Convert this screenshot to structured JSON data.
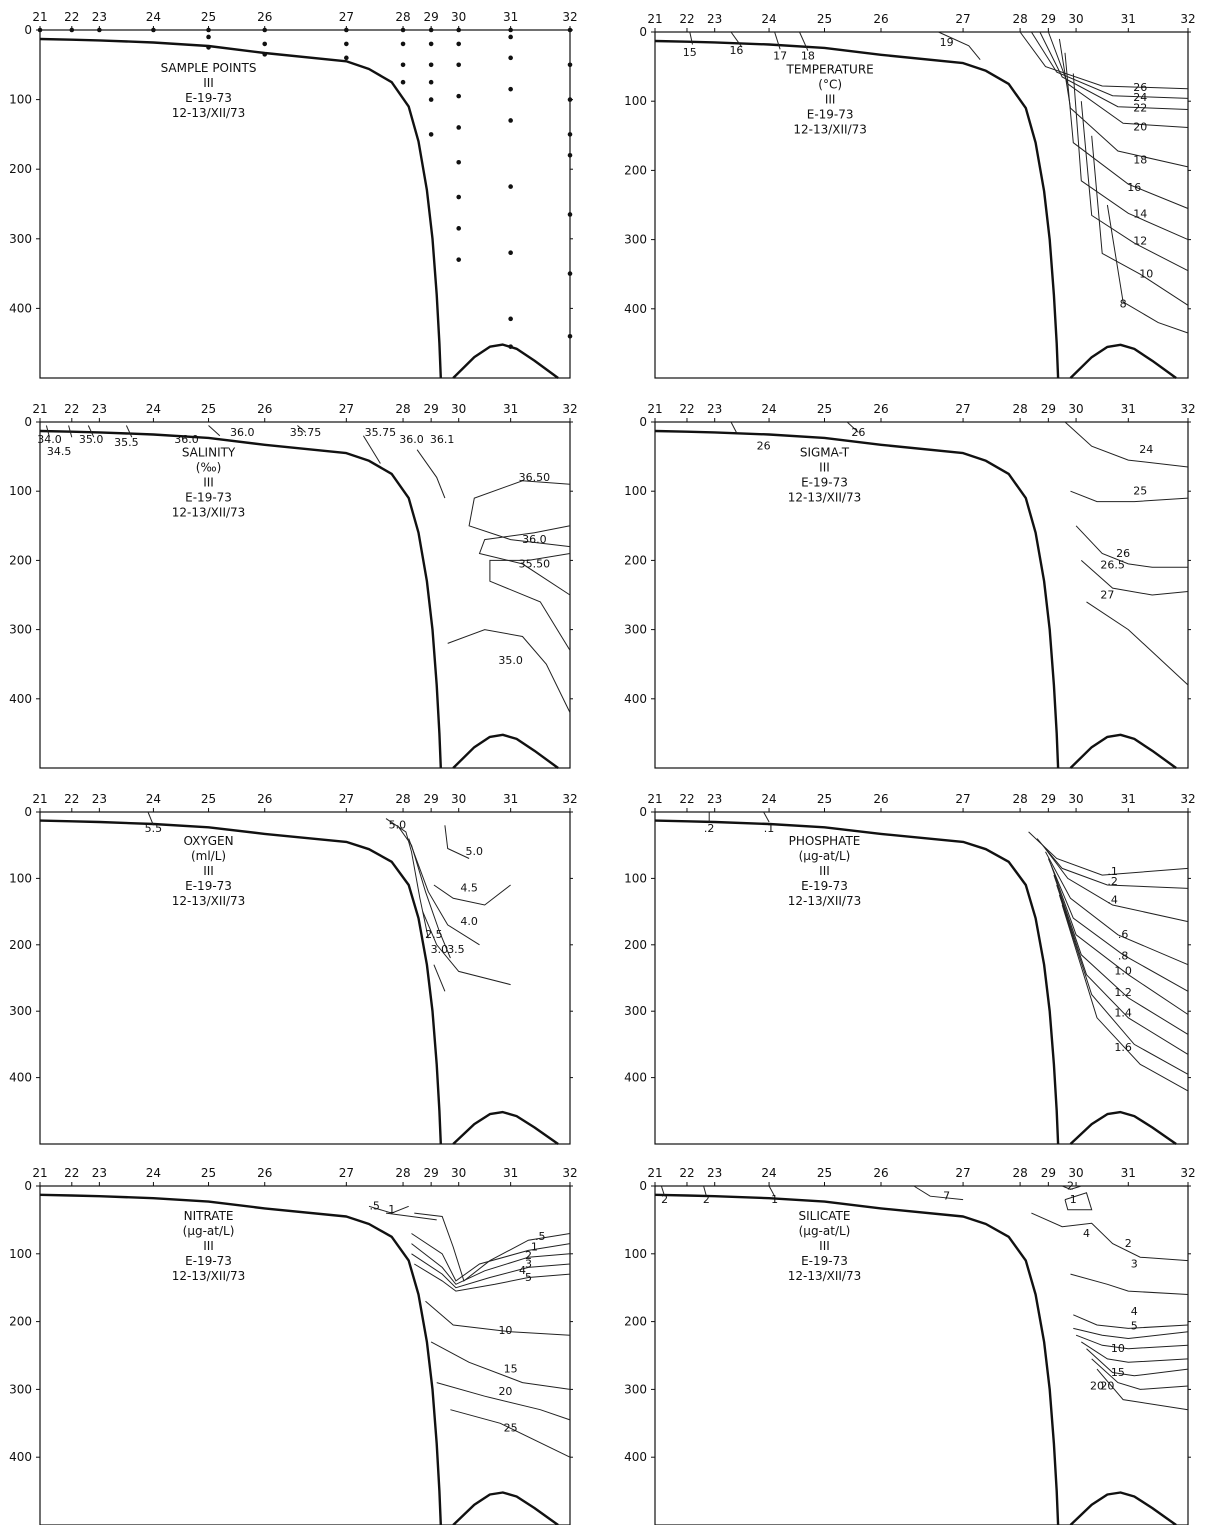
{
  "chart_data": [
    {
      "id": "sample_points",
      "type": "scatter",
      "title_lines": [
        "SAMPLE POINTS",
        "III",
        "E-19-73",
        "12-13/XII/73"
      ],
      "stations": [
        "21",
        "22",
        "23",
        "24",
        "25",
        "26",
        "27",
        "28",
        "29",
        "30",
        "31",
        "32"
      ],
      "y_ticks": [
        "0",
        "100",
        "200",
        "300",
        "400"
      ],
      "ylim": [
        0,
        500
      ],
      "points": [
        {
          "station": 21,
          "depth": 0
        },
        {
          "station": 22,
          "depth": 0
        },
        {
          "station": 23,
          "depth": 0
        },
        {
          "station": 24,
          "depth": 0
        },
        {
          "station": 25,
          "depth": 0
        },
        {
          "station": 25,
          "depth": 10
        },
        {
          "station": 25,
          "depth": 25
        },
        {
          "station": 26,
          "depth": 0
        },
        {
          "station": 26,
          "depth": 20
        },
        {
          "station": 26,
          "depth": 35
        },
        {
          "station": 27,
          "depth": 0
        },
        {
          "station": 27,
          "depth": 20
        },
        {
          "station": 27,
          "depth": 40
        },
        {
          "station": 28,
          "depth": 0
        },
        {
          "station": 28,
          "depth": 20
        },
        {
          "station": 28,
          "depth": 50
        },
        {
          "station": 28,
          "depth": 75
        },
        {
          "station": 29,
          "depth": 0
        },
        {
          "station": 29,
          "depth": 20
        },
        {
          "station": 29,
          "depth": 50
        },
        {
          "station": 29,
          "depth": 75
        },
        {
          "station": 29,
          "depth": 100
        },
        {
          "station": 29,
          "depth": 150
        },
        {
          "station": 30,
          "depth": 0
        },
        {
          "station": 30,
          "depth": 20
        },
        {
          "station": 30,
          "depth": 50
        },
        {
          "station": 30,
          "depth": 95
        },
        {
          "station": 30,
          "depth": 140
        },
        {
          "station": 30,
          "depth": 190
        },
        {
          "station": 30,
          "depth": 240
        },
        {
          "station": 30,
          "depth": 285
        },
        {
          "station": 30,
          "depth": 330
        },
        {
          "station": 31,
          "depth": 0
        },
        {
          "station": 31,
          "depth": 10
        },
        {
          "station": 31,
          "depth": 40
        },
        {
          "station": 31,
          "depth": 85
        },
        {
          "station": 31,
          "depth": 130
        },
        {
          "station": 31,
          "depth": 225
        },
        {
          "station": 31,
          "depth": 320
        },
        {
          "station": 31,
          "depth": 415
        },
        {
          "station": 31,
          "depth": 455
        },
        {
          "station": 32,
          "depth": 0
        },
        {
          "station": 32,
          "depth": 50
        },
        {
          "station": 32,
          "depth": 100
        },
        {
          "station": 32,
          "depth": 150
        },
        {
          "station": 32,
          "depth": 180
        },
        {
          "station": 32,
          "depth": 265
        },
        {
          "station": 32,
          "depth": 350
        },
        {
          "station": 32,
          "depth": 440
        }
      ],
      "labels": []
    },
    {
      "id": "temperature",
      "type": "heatmap",
      "title_lines": [
        "TEMPERATURE",
        "(°C)",
        "III",
        "E-19-73",
        "12-13/XII/73"
      ],
      "stations": [
        "21",
        "22",
        "23",
        "24",
        "25",
        "26",
        "27",
        "28",
        "29",
        "30",
        "31",
        "32"
      ],
      "y_ticks": [
        "0",
        "100",
        "200",
        "300",
        "400"
      ],
      "ylim": [
        0,
        500
      ],
      "labels": [
        {
          "text": "15",
          "x": 22.1,
          "y": 35
        },
        {
          "text": "16",
          "x": 23.4,
          "y": 32
        },
        {
          "text": "17",
          "x": 24.2,
          "y": 40
        },
        {
          "text": "18",
          "x": 24.7,
          "y": 40
        },
        {
          "text": "19",
          "x": 26.8,
          "y": 20
        },
        {
          "text": "26",
          "x": 31.2,
          "y": 85
        },
        {
          "text": "24",
          "x": 31.2,
          "y": 100
        },
        {
          "text": "22",
          "x": 31.2,
          "y": 115
        },
        {
          "text": "20",
          "x": 31.2,
          "y": 142
        },
        {
          "text": "18",
          "x": 31.2,
          "y": 190
        },
        {
          "text": "16",
          "x": 31.1,
          "y": 230
        },
        {
          "text": "14",
          "x": 31.2,
          "y": 268
        },
        {
          "text": "12",
          "x": 31.2,
          "y": 307
        },
        {
          "text": "10",
          "x": 31.3,
          "y": 355
        },
        {
          "text": "8",
          "x": 30.9,
          "y": 398
        }
      ]
    },
    {
      "id": "salinity",
      "type": "heatmap",
      "title_lines": [
        "SALINITY",
        "(‰)",
        "III",
        "E-19-73",
        "12-13/XII/73"
      ],
      "stations": [
        "21",
        "22",
        "23",
        "24",
        "25",
        "26",
        "27",
        "28",
        "29",
        "30",
        "31",
        "32"
      ],
      "y_ticks": [
        "0",
        "100",
        "200",
        "300",
        "400"
      ],
      "ylim": [
        0,
        500
      ],
      "labels": [
        {
          "text": "34.0",
          "x": 21.3,
          "y": 30
        },
        {
          "text": "34.5",
          "x": 21.6,
          "y": 48
        },
        {
          "text": "35.0",
          "x": 22.7,
          "y": 30
        },
        {
          "text": "35.5",
          "x": 23.5,
          "y": 35
        },
        {
          "text": "36.0",
          "x": 24.6,
          "y": 30
        },
        {
          "text": "36.0",
          "x": 25.6,
          "y": 20
        },
        {
          "text": "35.75",
          "x": 26.5,
          "y": 20
        },
        {
          "text": "35.75",
          "x": 27.6,
          "y": 20
        },
        {
          "text": "36.0",
          "x": 28.3,
          "y": 30
        },
        {
          "text": "36.1",
          "x": 29.4,
          "y": 30
        },
        {
          "text": "36.50",
          "x": 31.4,
          "y": 85
        },
        {
          "text": "36.0",
          "x": 31.4,
          "y": 175
        },
        {
          "text": "35.50",
          "x": 31.4,
          "y": 210
        },
        {
          "text": "35.0",
          "x": 31.0,
          "y": 350
        }
      ]
    },
    {
      "id": "sigma_t",
      "type": "heatmap",
      "title_lines": [
        "SIGMA-T",
        "III",
        "E-19-73",
        "12-13/XII/73"
      ],
      "stations": [
        "21",
        "22",
        "23",
        "24",
        "25",
        "26",
        "27",
        "28",
        "29",
        "30",
        "31",
        "32"
      ],
      "y_ticks": [
        "0",
        "100",
        "200",
        "300",
        "400"
      ],
      "ylim": [
        0,
        500
      ],
      "labels": [
        {
          "text": "26",
          "x": 23.9,
          "y": 40
        },
        {
          "text": "26",
          "x": 25.6,
          "y": 20
        },
        {
          "text": "24",
          "x": 31.3,
          "y": 45
        },
        {
          "text": "25",
          "x": 31.2,
          "y": 105
        },
        {
          "text": "26",
          "x": 30.9,
          "y": 195
        },
        {
          "text": "26.5",
          "x": 30.7,
          "y": 212
        },
        {
          "text": "27",
          "x": 30.6,
          "y": 255
        }
      ]
    },
    {
      "id": "oxygen",
      "type": "heatmap",
      "title_lines": [
        "OXYGEN",
        "(ml/L)",
        "III",
        "E-19-73",
        "12-13/XII/73"
      ],
      "stations": [
        "21",
        "22",
        "23",
        "24",
        "25",
        "26",
        "27",
        "28",
        "29",
        "30",
        "31",
        "32"
      ],
      "y_ticks": [
        "0",
        "100",
        "200",
        "300",
        "400"
      ],
      "ylim": [
        0,
        500
      ],
      "labels": [
        {
          "text": "5.5",
          "x": 24.0,
          "y": 30
        },
        {
          "text": "5.0",
          "x": 27.9,
          "y": 25
        },
        {
          "text": "5.0",
          "x": 30.3,
          "y": 65
        },
        {
          "text": "4.5",
          "x": 30.2,
          "y": 120
        },
        {
          "text": "4.0",
          "x": 30.2,
          "y": 170
        },
        {
          "text": "2.5",
          "x": 29.1,
          "y": 190
        },
        {
          "text": "3.0",
          "x": 29.3,
          "y": 212
        },
        {
          "text": "3.5",
          "x": 29.9,
          "y": 212
        }
      ]
    },
    {
      "id": "phosphate",
      "type": "heatmap",
      "title_lines": [
        "PHOSPHATE",
        "(μg-at/L)",
        "III",
        "E-19-73",
        "12-13/XII/73"
      ],
      "stations": [
        "21",
        "22",
        "23",
        "24",
        "25",
        "26",
        "27",
        "28",
        "29",
        "30",
        "31",
        "32"
      ],
      "y_ticks": [
        "0",
        "100",
        "200",
        "300",
        "400"
      ],
      "ylim": [
        0,
        500
      ],
      "labels": [
        {
          "text": ".2",
          "x": 22.8,
          "y": 30
        },
        {
          "text": ".1",
          "x": 24.0,
          "y": 30
        },
        {
          "text": ".1",
          "x": 30.7,
          "y": 95
        },
        {
          "text": ".2",
          "x": 30.7,
          "y": 110
        },
        {
          "text": ".4",
          "x": 30.7,
          "y": 138
        },
        {
          "text": ".6",
          "x": 30.9,
          "y": 190
        },
        {
          "text": ".8",
          "x": 30.9,
          "y": 222
        },
        {
          "text": "1.0",
          "x": 30.9,
          "y": 245
        },
        {
          "text": "1.2",
          "x": 30.9,
          "y": 277
        },
        {
          "text": "1.4",
          "x": 30.9,
          "y": 308
        },
        {
          "text": "1.6",
          "x": 30.9,
          "y": 360
        }
      ]
    },
    {
      "id": "nitrate",
      "type": "heatmap",
      "title_lines": [
        "NITRATE",
        "(μg-at/L)",
        "III",
        "E-19-73",
        "12-13/XII/73"
      ],
      "stations": [
        "21",
        "22",
        "23",
        "24",
        "25",
        "26",
        "27",
        "28",
        "29",
        "30",
        "31",
        "32"
      ],
      "y_ticks": [
        "0",
        "100",
        "200",
        "300",
        "400"
      ],
      "ylim": [
        0,
        500
      ],
      "labels": [
        {
          "text": ".5",
          "x": 27.5,
          "y": 35
        },
        {
          "text": "1",
          "x": 27.8,
          "y": 40
        },
        {
          "text": ".5",
          "x": 31.5,
          "y": 80
        },
        {
          "text": "1",
          "x": 31.4,
          "y": 95
        },
        {
          "text": "2",
          "x": 31.3,
          "y": 108
        },
        {
          "text": "3",
          "x": 31.3,
          "y": 120
        },
        {
          "text": "4",
          "x": 31.2,
          "y": 130
        },
        {
          "text": "5",
          "x": 31.3,
          "y": 140
        },
        {
          "text": "10",
          "x": 30.9,
          "y": 218
        },
        {
          "text": "15",
          "x": 31.0,
          "y": 275
        },
        {
          "text": "20",
          "x": 30.9,
          "y": 308
        },
        {
          "text": "25",
          "x": 31.0,
          "y": 362
        }
      ]
    },
    {
      "id": "silicate",
      "type": "heatmap",
      "title_lines": [
        "SILICATE",
        "(μg-at/L)",
        "III",
        "E-19-73",
        "12-13/XII/73"
      ],
      "stations": [
        "21",
        "22",
        "23",
        "24",
        "25",
        "26",
        "27",
        "28",
        "29",
        "30",
        "31",
        "32"
      ],
      "y_ticks": [
        "0",
        "100",
        "200",
        "300",
        "400"
      ],
      "ylim": [
        0,
        500
      ],
      "labels": [
        {
          "text": "2",
          "x": 21.3,
          "y": 25
        },
        {
          "text": "2",
          "x": 22.7,
          "y": 25
        },
        {
          "text": "1",
          "x": 24.1,
          "y": 25
        },
        {
          "text": "7",
          "x": 26.8,
          "y": 20
        },
        {
          "text": "2",
          "x": 29.8,
          "y": 5
        },
        {
          "text": "1",
          "x": 29.9,
          "y": 25
        },
        {
          "text": "4",
          "x": 30.2,
          "y": 75
        },
        {
          "text": "2",
          "x": 31.0,
          "y": 90
        },
        {
          "text": "3",
          "x": 31.1,
          "y": 120
        },
        {
          "text": "4",
          "x": 31.1,
          "y": 190
        },
        {
          "text": "5",
          "x": 31.1,
          "y": 212
        },
        {
          "text": "10",
          "x": 30.8,
          "y": 245
        },
        {
          "text": "15",
          "x": 30.8,
          "y": 280
        },
        {
          "text": "20",
          "x": 30.4,
          "y": 300
        },
        {
          "text": "20",
          "x": 30.6,
          "y": 300
        }
      ]
    }
  ]
}
